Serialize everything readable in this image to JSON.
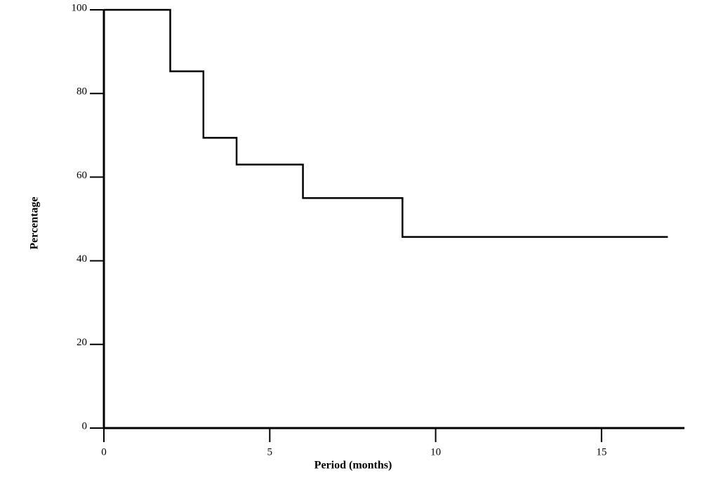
{
  "chart_data": {
    "type": "step",
    "x_label": "Period (months)",
    "y_label": "Percentage",
    "x": [
      0,
      2,
      3,
      4,
      6,
      9,
      17
    ],
    "values": [
      100,
      85.3,
      69.4,
      63,
      55,
      45.7,
      45.7
    ],
    "color": "#000000",
    "xlim": [
      0,
      17.5
    ],
    "xticks": [
      0,
      5,
      10,
      15
    ],
    "ylim": [
      0,
      100
    ],
    "yticks": [
      0,
      20,
      40,
      60,
      80,
      100
    ]
  }
}
